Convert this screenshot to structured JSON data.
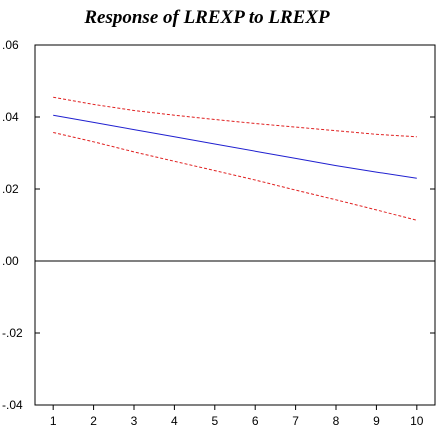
{
  "chart_data": {
    "type": "line",
    "title": "Response of LREXP to LREXP",
    "x": [
      1,
      2,
      3,
      4,
      5,
      6,
      7,
      8,
      9,
      10
    ],
    "xlim": [
      0.55,
      10.45
    ],
    "ylim": [
      -0.04,
      0.06
    ],
    "yticks": [
      ".06",
      ".04",
      ".02",
      ".00",
      "-.02",
      "-.04"
    ],
    "ytick_values": [
      0.06,
      0.04,
      0.02,
      0.0,
      -0.02,
      -0.04
    ],
    "zero_line": true,
    "grid": false,
    "series": [
      {
        "values": [
          0.0405,
          0.0385,
          0.0365,
          0.0345,
          0.0325,
          0.0305,
          0.0285,
          0.0265,
          0.0247,
          0.023
        ],
        "color": "#2020d0",
        "style": "solid"
      },
      {
        "values": [
          0.0455,
          0.0435,
          0.0418,
          0.0405,
          0.0393,
          0.0382,
          0.0372,
          0.0362,
          0.0352,
          0.0345
        ],
        "color": "#e02020",
        "style": "dashed"
      },
      {
        "values": [
          0.0357,
          0.0331,
          0.0303,
          0.0277,
          0.0251,
          0.0225,
          0.0197,
          0.017,
          0.0142,
          0.0113
        ],
        "color": "#e02020",
        "style": "dashed"
      }
    ]
  }
}
